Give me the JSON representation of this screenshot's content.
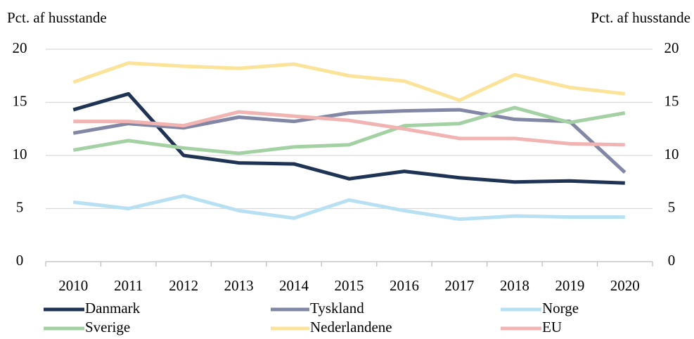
{
  "chart_data": {
    "type": "line",
    "y_label": "Pct. af husstande",
    "y2_label": "Pct. af husstande",
    "categories": [
      "2010",
      "2011",
      "2012",
      "2013",
      "2014",
      "2015",
      "2016",
      "2017",
      "2018",
      "2019",
      "2020"
    ],
    "ylim": [
      0,
      20
    ],
    "yticks": [
      0,
      5,
      10,
      15,
      20
    ],
    "y2lim": [
      0,
      20
    ],
    "y2ticks": [
      0,
      5,
      10,
      15,
      20
    ],
    "grid": true,
    "series": [
      {
        "name": "Danmark",
        "color": "#1f3354",
        "values": [
          14.3,
          15.8,
          10.0,
          9.3,
          9.2,
          7.8,
          8.5,
          7.9,
          7.5,
          7.6,
          7.4
        ]
      },
      {
        "name": "Tyskland",
        "color": "#8287a6",
        "values": [
          12.1,
          13.0,
          12.6,
          13.6,
          13.2,
          14.0,
          14.2,
          14.3,
          13.4,
          13.2,
          8.4
        ]
      },
      {
        "name": "Norge",
        "color": "#b8e0f3",
        "values": [
          5.6,
          5.0,
          6.2,
          4.8,
          4.1,
          5.8,
          4.8,
          4.0,
          4.3,
          4.2,
          4.2
        ]
      },
      {
        "name": "Sverige",
        "color": "#a3d1a3",
        "values": [
          10.5,
          11.4,
          10.7,
          10.2,
          10.8,
          11.0,
          12.8,
          13.0,
          14.5,
          13.1,
          14.0
        ]
      },
      {
        "name": "Nederlandene",
        "color": "#fbe49a",
        "values": [
          16.9,
          18.7,
          18.4,
          18.2,
          18.6,
          17.5,
          17.0,
          15.2,
          17.6,
          16.4,
          15.8
        ]
      },
      {
        "name": "EU",
        "color": "#f2b3b3",
        "values": [
          13.2,
          13.2,
          12.8,
          14.1,
          13.7,
          13.3,
          12.5,
          11.6,
          11.6,
          11.1,
          11.0
        ]
      }
    ]
  }
}
